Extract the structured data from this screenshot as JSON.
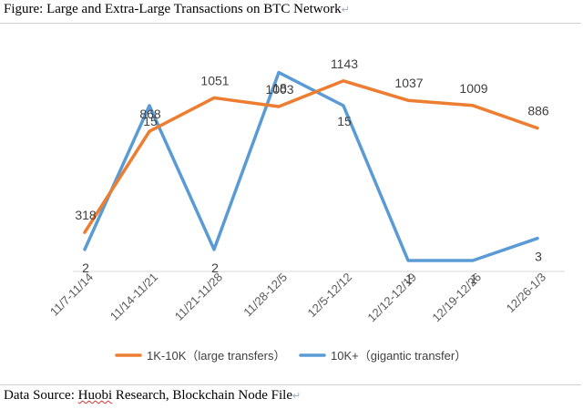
{
  "figure": {
    "title": "Figure: Large and Extra-Large Transactions on BTC Network",
    "source_prefix": "Data Source: ",
    "source_underlined": "Huobi",
    "source_rest": " Research, Blockchain Node File",
    "return_mark": "↵"
  },
  "chart_data": {
    "type": "line",
    "categories": [
      "11/7-11/14",
      "11/14-11/21",
      "11/21-11/28",
      "11/28-12/5",
      "12/5-12/12",
      "12/12-12/19",
      "12/19-12/26",
      "12/26-1/3"
    ],
    "series": [
      {
        "name": "1K-10K（large transfers）",
        "color": "#ed7d31",
        "values": [
          318,
          868,
          1051,
          1003,
          1143,
          1037,
          1009,
          886
        ]
      },
      {
        "name": "10K+（gigantic transfer）",
        "color": "#5b9bd5",
        "values": [
          2,
          15,
          2,
          18,
          15,
          1,
          1,
          3
        ]
      }
    ],
    "legend_position": "bottom",
    "grid": false
  }
}
